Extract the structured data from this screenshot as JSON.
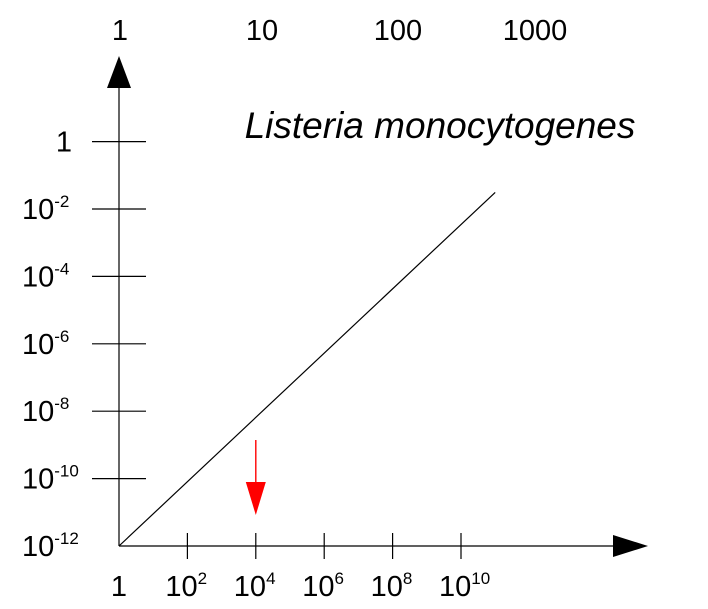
{
  "chart_data": {
    "type": "line",
    "title": "Listeria monocytogenes",
    "x_scale": "log",
    "y_scale": "log",
    "x_ticks": [
      {
        "value": 1,
        "base": "1",
        "exp": ""
      },
      {
        "value": 100,
        "base": "10",
        "exp": "2"
      },
      {
        "value": 10000,
        "base": "10",
        "exp": "4"
      },
      {
        "value": 1000000,
        "base": "10",
        "exp": "6"
      },
      {
        "value": 100000000,
        "base": "10",
        "exp": "8"
      },
      {
        "value": 10000000000,
        "base": "10",
        "exp": "10"
      }
    ],
    "y_ticks": [
      {
        "value": 1e-12,
        "base": "10",
        "exp": "-12"
      },
      {
        "value": 1e-10,
        "base": "10",
        "exp": "-10"
      },
      {
        "value": 1e-08,
        "base": "10",
        "exp": "-8"
      },
      {
        "value": 1e-06,
        "base": "10",
        "exp": "-6"
      },
      {
        "value": 0.0001,
        "base": "10",
        "exp": "-4"
      },
      {
        "value": 0.01,
        "base": "10",
        "exp": "-2"
      },
      {
        "value": 1,
        "base": "1",
        "exp": ""
      }
    ],
    "top_axis_labels": [
      "1",
      "10",
      "100",
      "1000"
    ],
    "series": [
      {
        "x": [
          1,
          100000000000.0
        ],
        "y": [
          1e-12,
          0.031
        ]
      }
    ],
    "annotation": {
      "type": "arrow",
      "x": 10000,
      "color": "#ff0000"
    },
    "colors": {
      "axis": "#000000",
      "line": "#000000",
      "arrow": "#ff0000"
    }
  }
}
